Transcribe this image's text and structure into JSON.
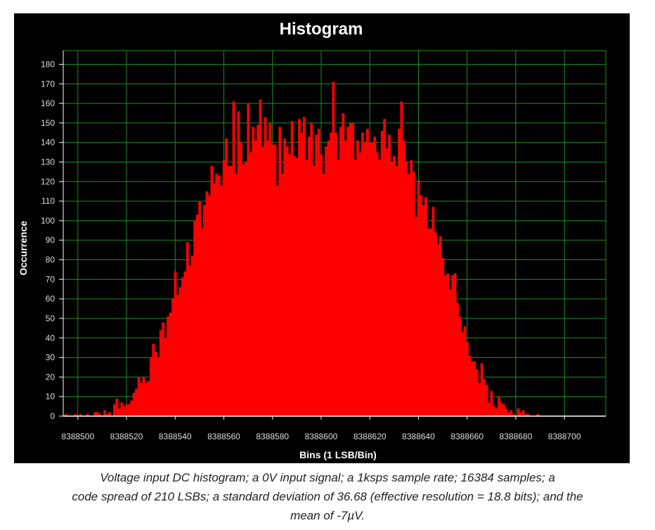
{
  "chart_data": {
    "type": "bar",
    "title": "Histogram",
    "xlabel": "Bins (1 LSB/Bin)",
    "ylabel": "Occurrence",
    "xlim": [
      8388494,
      8388717
    ],
    "ylim": [
      0,
      187
    ],
    "x_ticks": [
      8388500,
      8388520,
      8388540,
      8388560,
      8388580,
      8388600,
      8388620,
      8388640,
      8388660,
      8388680,
      8388700
    ],
    "y_ticks": [
      0,
      10,
      20,
      30,
      40,
      50,
      60,
      70,
      80,
      90,
      100,
      110,
      120,
      130,
      140,
      150,
      160,
      170,
      180
    ],
    "grid": true,
    "colors": {
      "background": "#000000",
      "grid": "#1f8f1f",
      "bars": "#ff0000",
      "text": "#ffffff",
      "axis_text": "#dddddd"
    },
    "bin_start": 8388495,
    "values": [
      1,
      0,
      0,
      0,
      1,
      0,
      1,
      0,
      0,
      1,
      0,
      0,
      2,
      2,
      1,
      0,
      3,
      1,
      2,
      0,
      6,
      9,
      4,
      7,
      5,
      6,
      6,
      8,
      12,
      14,
      20,
      17,
      20,
      17,
      18,
      30,
      37,
      33,
      30,
      44,
      48,
      40,
      51,
      53,
      60,
      74,
      62,
      66,
      71,
      74,
      89,
      77,
      82,
      100,
      103,
      110,
      96,
      108,
      115,
      113,
      128,
      119,
      124,
      123,
      118,
      131,
      142,
      128,
      128,
      161,
      124,
      156,
      140,
      129,
      130,
      160,
      135,
      148,
      141,
      149,
      162,
      138,
      153,
      141,
      150,
      139,
      139,
      118,
      148,
      124,
      142,
      138,
      134,
      151,
      133,
      132,
      152,
      145,
      153,
      131,
      143,
      150,
      128,
      144,
      147,
      134,
      124,
      138,
      141,
      145,
      171,
      145,
      131,
      148,
      155,
      141,
      148,
      150,
      150,
      131,
      141,
      135,
      145,
      140,
      147,
      140,
      140,
      143,
      135,
      131,
      146,
      152,
      137,
      144,
      130,
      133,
      128,
      147,
      161,
      141,
      130,
      124,
      131,
      125,
      102,
      121,
      113,
      108,
      112,
      96,
      96,
      107,
      94,
      88,
      92,
      81,
      72,
      73,
      65,
      72,
      73,
      58,
      51,
      43,
      46,
      38,
      31,
      28,
      28,
      24,
      17,
      27,
      19,
      16,
      7,
      13,
      5,
      4,
      10,
      7,
      6,
      4,
      2,
      3,
      1,
      0,
      4,
      2,
      3,
      1,
      1,
      0,
      0,
      0,
      1,
      0,
      0,
      0,
      0,
      0,
      0,
      0,
      0,
      0,
      0,
      0,
      0,
      0,
      0,
      0,
      0
    ]
  },
  "caption": {
    "line1": "Voltage input DC histogram; a 0V input signal; a 1ksps sample rate; 16384 samples; a",
    "line2": "code spread of 210 LSBs; a standard deviation of 36.68 (effective resolution = 18.8 bits); and the",
    "line3": "mean of -7µV."
  }
}
